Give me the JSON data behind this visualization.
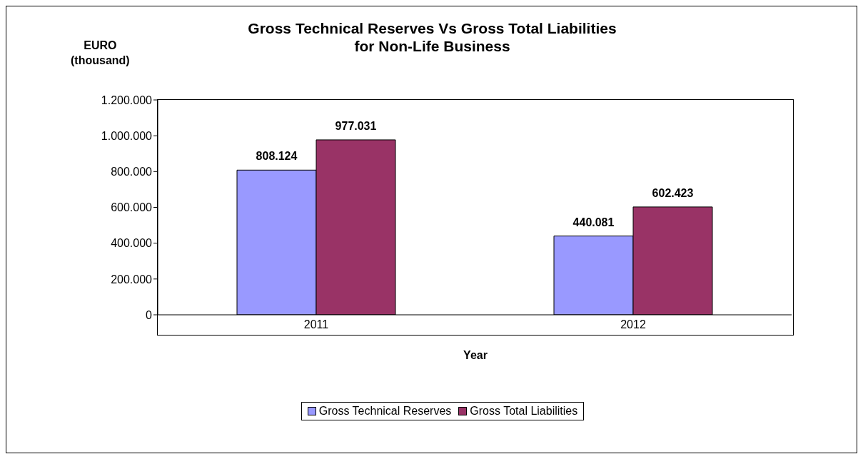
{
  "chart_data": {
    "type": "bar",
    "title": "Gross Technical Reserves Vs Gross Total Liabilities\nfor Non-Life Business",
    "ylabel": "EURO\n(thousand)",
    "xlabel": "Year",
    "categories": [
      "2011",
      "2012"
    ],
    "series": [
      {
        "name": "Gross Technical Reserves",
        "color": "#9999ff",
        "values": [
          808124,
          440081
        ],
        "value_labels": [
          "808.124",
          "440.081"
        ]
      },
      {
        "name": "Gross Total Liabilities",
        "color": "#993366",
        "values": [
          977031,
          602423
        ],
        "value_labels": [
          "977.031",
          "602.423"
        ]
      }
    ],
    "ylim": [
      0,
      1200000
    ],
    "yticks": [
      {
        "value": 0,
        "label": "0"
      },
      {
        "value": 200000,
        "label": "200.000"
      },
      {
        "value": 400000,
        "label": "400.000"
      },
      {
        "value": 600000,
        "label": "600.000"
      },
      {
        "value": 800000,
        "label": "800.000"
      },
      {
        "value": 1000000,
        "label": "1.000.000"
      },
      {
        "value": 1200000,
        "label": "1.200.000"
      }
    ],
    "legend": "bottom",
    "grid": false
  }
}
